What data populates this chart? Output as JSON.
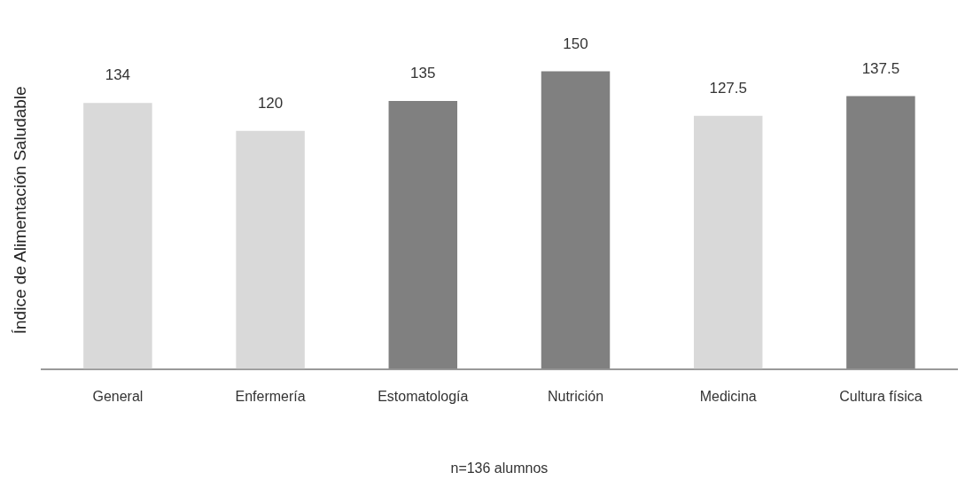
{
  "chart_data": {
    "type": "bar",
    "ylabel": "Índice de Alimentación Saludable",
    "xlabel": "n=136 alumnos",
    "categories": [
      "General",
      "Enfermería",
      "Estomatología",
      "Nutrición",
      "Medicina",
      "Cultura física"
    ],
    "values": [
      134,
      120,
      135,
      150,
      127.5,
      137.5
    ],
    "colors": [
      "#d9d9d9",
      "#d9d9d9",
      "#808080",
      "#808080",
      "#d9d9d9",
      "#808080"
    ],
    "data_labels": true,
    "grid": false,
    "legend": false,
    "tick_labels": "x"
  }
}
